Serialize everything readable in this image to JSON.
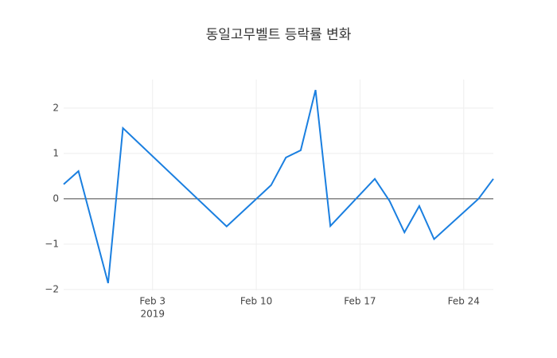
{
  "chart_data": {
    "type": "line",
    "title": "동일고무벨트 등락률 변화",
    "x": [
      "2019-01-28",
      "2019-01-29",
      "2019-01-31",
      "2019-02-01",
      "2019-02-08",
      "2019-02-11",
      "2019-02-12",
      "2019-02-13",
      "2019-02-14",
      "2019-02-15",
      "2019-02-18",
      "2019-02-19",
      "2019-02-20",
      "2019-02-21",
      "2019-02-22",
      "2019-02-25",
      "2019-02-26"
    ],
    "series": [
      {
        "color": "#1a7fe0",
        "values": [
          0.32,
          0.61,
          -1.86,
          1.56,
          -0.61,
          0.3,
          0.91,
          1.07,
          2.4,
          -0.6,
          0.44,
          -0.05,
          -0.74,
          -0.16,
          -0.89,
          0.0,
          0.44
        ]
      }
    ],
    "xlim": [
      "2019-01-28",
      "2019-02-26"
    ],
    "xticks": [
      {
        "value": "2019-02-03",
        "label": "Feb 3"
      },
      {
        "value": "2019-02-10",
        "label": "Feb 10"
      },
      {
        "value": "2019-02-17",
        "label": "Feb 17"
      },
      {
        "value": "2019-02-24",
        "label": "Feb 24"
      }
    ],
    "x_year": "2019",
    "ylim": [
      -2.02,
      2.63
    ],
    "yticks": [
      {
        "value": -2,
        "label": "−2"
      },
      {
        "value": -1,
        "label": "−1"
      },
      0,
      1,
      2
    ],
    "grid": true,
    "zero_line": true
  }
}
